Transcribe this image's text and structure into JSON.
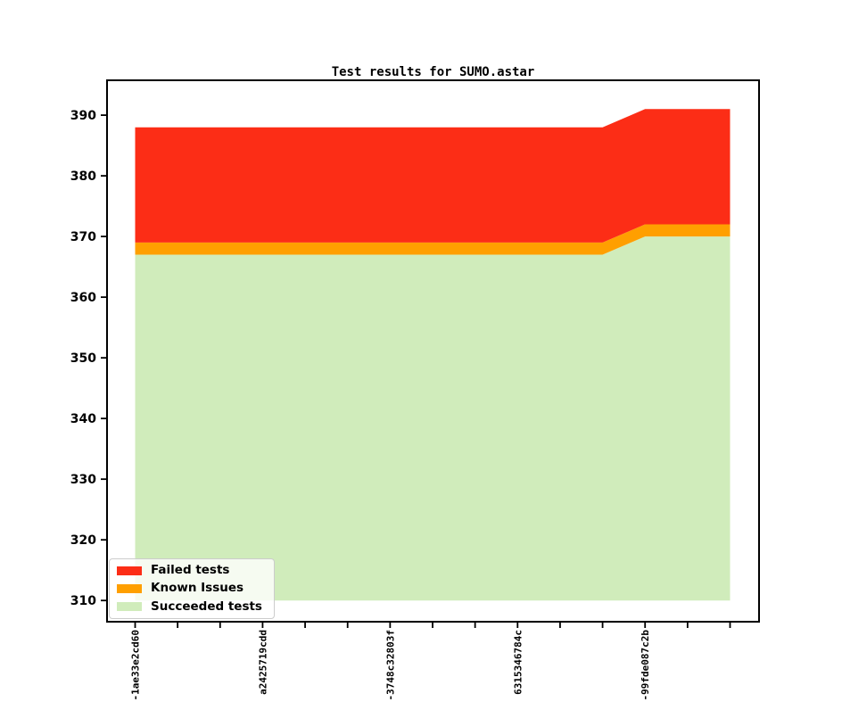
{
  "figure": {
    "background": "#ffffff"
  },
  "chart_data": {
    "type": "area",
    "stacked": true,
    "title": "Test results for SUMO.astar",
    "n_points": 15,
    "x_tick_labels": [
      "-1ae33e2cd60",
      "",
      "",
      "a2425719cdd",
      "",
      "",
      "-3748c32803f",
      "",
      "",
      "6315346784c",
      "",
      "",
      "-99fde087c2b",
      "",
      ""
    ],
    "baseline": 310,
    "ylim": [
      306.5,
      395.75
    ],
    "yticks": [
      310,
      320,
      330,
      340,
      350,
      360,
      370,
      380,
      390
    ],
    "grid": false,
    "legend_position": "lower left",
    "series": [
      {
        "name": "Succeeded tests",
        "color": "#d0ecbb",
        "absolute": true,
        "values": [
          367,
          367,
          367,
          367,
          367,
          367,
          367,
          367,
          367,
          367,
          367,
          367,
          370,
          370,
          370
        ]
      },
      {
        "name": "Known Issues",
        "color": "#ff9f00",
        "absolute": false,
        "values": [
          2,
          2,
          2,
          2,
          2,
          2,
          2,
          2,
          2,
          2,
          2,
          2,
          2,
          2,
          2
        ]
      },
      {
        "name": "Failed tests",
        "color": "#fc2d16",
        "absolute": false,
        "values": [
          19,
          19,
          19,
          19,
          19,
          19,
          19,
          19,
          19,
          19,
          19,
          19,
          19,
          19,
          19
        ]
      }
    ],
    "stack_totals": [
      388,
      388,
      388,
      388,
      388,
      388,
      388,
      388,
      388,
      388,
      388,
      388,
      391,
      391,
      391
    ],
    "axis_color": "#000000"
  }
}
